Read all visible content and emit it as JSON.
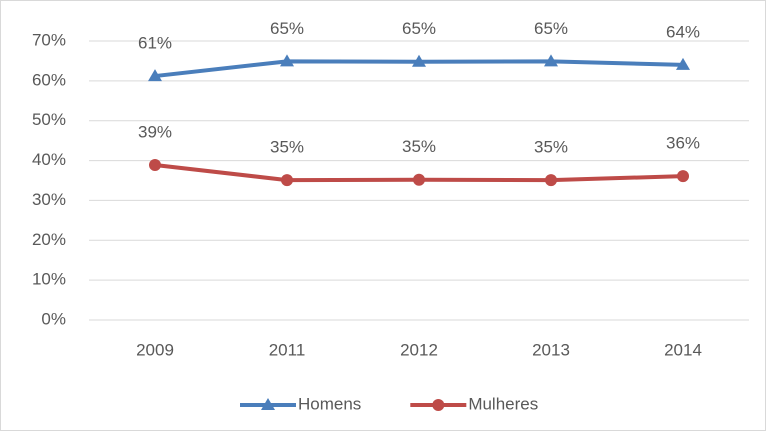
{
  "chart_data": {
    "type": "line",
    "categories": [
      "2009",
      "2011",
      "2012",
      "2013",
      "2014"
    ],
    "series": [
      {
        "name": "Homens",
        "color": "#4a7ebb",
        "marker": "triangle",
        "values": [
          61.2,
          64.9,
          64.8,
          64.9,
          64.0
        ],
        "value_labels": [
          "61%",
          "65%",
          "65%",
          "65%",
          "64%"
        ]
      },
      {
        "name": "Mulheres",
        "color": "#be4b48",
        "marker": "circle",
        "values": [
          38.9,
          35.1,
          35.2,
          35.1,
          36.1
        ],
        "value_labels": [
          "39%",
          "35%",
          "35%",
          "35%",
          "36%"
        ]
      }
    ],
    "ylim": [
      0,
      70
    ],
    "yticks": [
      {
        "value": 0,
        "label": "0%"
      },
      {
        "value": 10,
        "label": "10%"
      },
      {
        "value": 20,
        "label": "20%"
      },
      {
        "value": 30,
        "label": "30%"
      },
      {
        "value": 40,
        "label": "40%"
      },
      {
        "value": 50,
        "label": "50%"
      },
      {
        "value": 60,
        "label": "60%"
      },
      {
        "value": 70,
        "label": "70%"
      }
    ],
    "grid": true,
    "legend": "bottom"
  }
}
